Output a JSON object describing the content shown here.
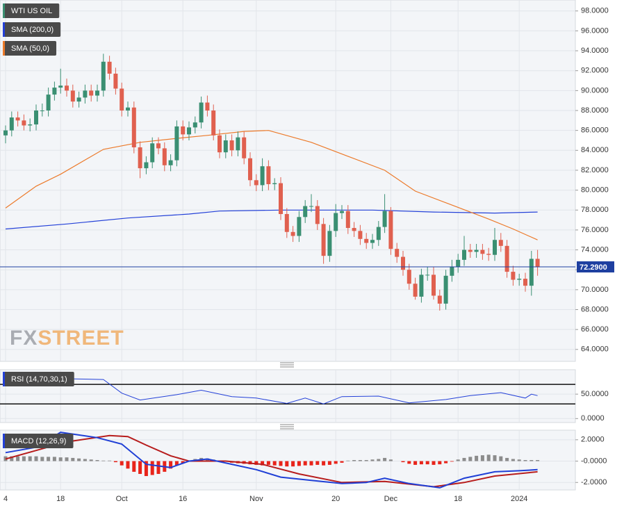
{
  "chart_data": [
    {
      "type": "candlestick",
      "title": "WTI US OIL",
      "watermark": [
        "FX",
        "STREET"
      ],
      "categories": [
        "4",
        null,
        null,
        null,
        null,
        null,
        null,
        null,
        null,
        "18",
        null,
        null,
        null,
        null,
        null,
        null,
        null,
        null,
        null,
        "Oct",
        null,
        null,
        null,
        null,
        null,
        null,
        null,
        null,
        null,
        "16",
        null,
        null,
        null,
        null,
        null,
        null,
        null,
        null,
        null,
        null,
        null,
        "Nov",
        null,
        null,
        null,
        null,
        null,
        null,
        null,
        null,
        null,
        null,
        null,
        null,
        "20",
        null,
        null,
        null,
        null,
        null,
        null,
        null,
        null,
        "Dec",
        null,
        null,
        null,
        null,
        null,
        null,
        null,
        null,
        null,
        null,
        "18",
        null,
        null,
        null,
        null,
        null,
        null,
        null,
        null,
        null,
        "2024",
        null,
        null,
        null
      ],
      "open": [
        85.5,
        86.0,
        87.3,
        87.0,
        86.5,
        86.6,
        88.0,
        88.0,
        89.6,
        90.3,
        90.5,
        90.0,
        88.9,
        89.3,
        90.0,
        89.5,
        90.0,
        92.9,
        91.7,
        90.2,
        88.0,
        88.3,
        84.3,
        82.2,
        82.8,
        84.7,
        84.2,
        82.5,
        83.0,
        86.4,
        85.6,
        86.3,
        86.8,
        88.8,
        88.0,
        85.5,
        83.8,
        85.0,
        84.0,
        85.3,
        83.2,
        81.0,
        80.5,
        82.4,
        80.6,
        80.7,
        77.6,
        75.8,
        75.4,
        77.3,
        78.4,
        78.4,
        76.6,
        73.4,
        75.9,
        77.7,
        77.9,
        76.2,
        75.9,
        75.1,
        74.7,
        75.0,
        76.3,
        77.9,
        74.1,
        73.3,
        72.0,
        70.6,
        69.3,
        71.5,
        71.5,
        69.4,
        68.6,
        71.4,
        72.3,
        73.0,
        74.0,
        73.8,
        74.0,
        73.6,
        73.5,
        75.0,
        74.4,
        71.8,
        71.0,
        71.1,
        70.4,
        73.1
      ],
      "high": [
        86.5,
        87.9,
        87.9,
        87.6,
        87.2,
        88.6,
        88.7,
        90.3,
        90.9,
        92.2,
        91.2,
        90.6,
        89.9,
        90.6,
        90.6,
        90.6,
        93.7,
        93.5,
        92.3,
        90.8,
        88.9,
        88.9,
        84.9,
        83.4,
        85.3,
        85.3,
        84.8,
        83.6,
        87.0,
        87.0,
        86.9,
        87.4,
        89.4,
        89.5,
        88.6,
        86.1,
        85.6,
        85.6,
        85.9,
        85.9,
        83.8,
        81.6,
        83.2,
        83.0,
        81.2,
        81.3,
        78.2,
        76.4,
        77.9,
        79.0,
        79.6,
        79.0,
        77.2,
        76.5,
        78.6,
        78.5,
        78.5,
        76.8,
        76.5,
        75.7,
        75.6,
        76.9,
        79.6,
        78.3,
        74.7,
        73.9,
        72.6,
        71.2,
        72.1,
        72.3,
        72.3,
        70.0,
        72.0,
        73.0,
        73.6,
        75.4,
        74.6,
        74.6,
        74.6,
        74.2,
        76.2,
        75.7,
        75.0,
        72.4,
        71.6,
        71.7,
        73.9,
        74.0
      ],
      "low": [
        84.7,
        85.4,
        86.4,
        86.0,
        85.9,
        86.0,
        87.4,
        87.4,
        89.0,
        89.7,
        89.4,
        88.3,
        88.3,
        88.7,
        88.9,
        88.9,
        89.4,
        91.1,
        89.6,
        87.4,
        87.4,
        83.7,
        81.2,
        81.6,
        82.2,
        83.6,
        81.9,
        81.9,
        82.4,
        85.0,
        85.0,
        85.7,
        86.2,
        87.4,
        85.0,
        83.2,
        83.2,
        83.4,
        83.4,
        82.6,
        80.4,
        79.9,
        79.9,
        80.0,
        80.0,
        77.0,
        75.2,
        74.8,
        74.8,
        76.7,
        77.8,
        76.0,
        72.6,
        72.8,
        75.3,
        77.1,
        75.6,
        75.3,
        74.5,
        74.1,
        74.1,
        74.4,
        75.7,
        73.5,
        72.7,
        71.4,
        70.0,
        69.0,
        68.7,
        70.9,
        69.0,
        67.9,
        68.0,
        70.8,
        71.7,
        72.4,
        73.2,
        73.2,
        73.0,
        72.9,
        72.9,
        73.8,
        71.2,
        70.4,
        70.4,
        69.8,
        69.4,
        71.4
      ],
      "close": [
        86.0,
        87.3,
        87.0,
        86.5,
        86.6,
        88.0,
        88.0,
        89.6,
        90.3,
        90.5,
        90.0,
        88.9,
        89.3,
        90.0,
        89.5,
        90.0,
        92.9,
        91.7,
        90.2,
        88.0,
        88.3,
        84.3,
        82.2,
        82.8,
        84.7,
        84.2,
        82.5,
        83.0,
        86.4,
        85.6,
        86.3,
        86.8,
        88.8,
        88.0,
        85.5,
        83.8,
        85.0,
        84.0,
        85.3,
        83.2,
        81.0,
        80.5,
        82.4,
        80.6,
        80.7,
        77.6,
        75.8,
        75.4,
        77.3,
        78.4,
        78.4,
        76.6,
        73.4,
        75.9,
        77.7,
        77.9,
        76.2,
        75.9,
        75.1,
        74.7,
        75.0,
        76.3,
        77.9,
        74.1,
        73.3,
        72.0,
        70.6,
        69.3,
        71.5,
        71.5,
        69.4,
        68.6,
        71.4,
        72.3,
        73.0,
        74.0,
        73.8,
        74.0,
        73.6,
        73.5,
        75.0,
        74.4,
        71.8,
        71.0,
        71.1,
        70.4,
        73.1,
        72.3
      ],
      "up_color": "#3a8f72",
      "down_color": "#e0604f",
      "legend_color": "#3a8f72",
      "series": [
        {
          "name": "SMA (200,0)",
          "color": "#2340d8",
          "x": [
            0,
            10,
            20,
            30,
            35,
            45,
            60,
            70,
            80,
            87
          ],
          "values": [
            76.1,
            76.6,
            77.2,
            77.6,
            77.9,
            78.0,
            78.0,
            77.8,
            77.7,
            77.8
          ]
        },
        {
          "name": "SMA (50,0)",
          "color": "#ec7a2a",
          "x": [
            0,
            5,
            9,
            16,
            22,
            28,
            33,
            39,
            43,
            50,
            56,
            62,
            67,
            73,
            79,
            83,
            87
          ],
          "values": [
            78.2,
            80.4,
            81.6,
            84.1,
            84.8,
            85.2,
            85.5,
            85.9,
            86.0,
            84.8,
            83.4,
            82.0,
            79.9,
            78.5,
            77.1,
            76.1,
            75.0
          ]
        }
      ],
      "last": {
        "value": 72.29,
        "label": "72.2900",
        "color": "#1e3fa0"
      },
      "ylim": [
        62.8,
        99.1
      ],
      "yticks": [
        {
          "value": 98,
          "label": "98.0000"
        },
        {
          "value": 96,
          "label": "96.0000"
        },
        {
          "value": 94,
          "label": "94.0000"
        },
        {
          "value": 92,
          "label": "92.0000"
        },
        {
          "value": 90,
          "label": "90.0000"
        },
        {
          "value": 88,
          "label": "88.0000"
        },
        {
          "value": 86,
          "label": "86.0000"
        },
        {
          "value": 84,
          "label": "84.0000"
        },
        {
          "value": 82,
          "label": "82.0000"
        },
        {
          "value": 80,
          "label": "80.0000"
        },
        {
          "value": 78,
          "label": "78.0000"
        },
        {
          "value": 76,
          "label": "76.0000"
        },
        {
          "value": 74,
          "label": "74.0000"
        },
        {
          "value": 72,
          "label": "72.0000"
        },
        {
          "value": 70,
          "label": "70.0000"
        },
        {
          "value": 68,
          "label": "68.0000"
        },
        {
          "value": 66,
          "label": "66.0000"
        },
        {
          "value": 64,
          "label": "64.0000"
        }
      ],
      "grid": true
    },
    {
      "type": "line",
      "series": [
        {
          "name": "RSI (14,70,30,1)",
          "color": "#2340d8",
          "x": [
            0,
            8,
            16,
            19,
            22,
            28,
            32,
            37,
            41,
            46,
            49,
            52,
            55,
            61,
            66,
            72,
            76,
            81,
            85,
            86,
            87
          ],
          "values": [
            80,
            82,
            80,
            52,
            38,
            49,
            58,
            45,
            42,
            31,
            42,
            30,
            45,
            46,
            32,
            39,
            47,
            53,
            42,
            50,
            47
          ]
        }
      ],
      "levels": [
        70,
        30
      ],
      "ylim": [
        -8.1,
        100
      ],
      "yticks": [
        {
          "value": 50,
          "label": "50.0000"
        },
        {
          "value": 0,
          "label": "0.0000"
        }
      ],
      "grid": true
    },
    {
      "type": "macd",
      "title": "MACD (12,26,9)",
      "legend_color": "#2340d8",
      "macd": {
        "color": "#1f3fd6",
        "x": [
          0,
          5,
          9,
          15,
          19,
          23,
          27,
          30,
          33,
          37,
          41,
          45,
          50,
          55,
          59,
          62,
          66,
          71,
          75,
          80,
          84,
          87
        ],
        "values": [
          0.8,
          1.3,
          2.7,
          2.2,
          1.6,
          -0.3,
          -0.6,
          0.0,
          0.2,
          -0.3,
          -0.8,
          -1.5,
          -1.8,
          -2.1,
          -2.0,
          -1.6,
          -2.1,
          -2.5,
          -1.6,
          -1.0,
          -0.9,
          -0.8
        ]
      },
      "signal": {
        "color": "#b71c1c",
        "x": [
          0,
          5,
          10,
          17,
          20,
          23,
          27,
          30,
          36,
          42,
          48,
          55,
          62,
          70,
          75,
          80,
          87
        ],
        "values": [
          0.2,
          1.0,
          1.8,
          2.4,
          2.3,
          1.5,
          0.5,
          0.0,
          0.0,
          -0.3,
          -1.2,
          -2.0,
          -1.9,
          -2.4,
          -2.0,
          -1.4,
          -1.0
        ]
      },
      "histogram": {
        "up_color": "#8c8c8c",
        "down_color": "#e8241a",
        "values": [
          0.45,
          0.45,
          0.45,
          0.45,
          0.45,
          0.45,
          0.4,
          0.4,
          0.4,
          0.35,
          0.35,
          0.3,
          0.25,
          0.2,
          0.15,
          0.1,
          0.05,
          0.05,
          -0.1,
          -0.4,
          -0.7,
          -1.0,
          -1.2,
          -1.4,
          -1.3,
          -1.2,
          -1.0,
          -0.7,
          -0.4,
          -0.2,
          0.05,
          0.2,
          0.3,
          0.25,
          0.15,
          0.05,
          -0.05,
          -0.15,
          -0.2,
          -0.25,
          -0.3,
          -0.35,
          -0.4,
          -0.35,
          -0.4,
          -0.45,
          -0.5,
          -0.5,
          -0.45,
          -0.4,
          -0.4,
          -0.35,
          -0.4,
          -0.35,
          -0.25,
          -0.15,
          0.05,
          0.1,
          0.1,
          0.1,
          0.15,
          0.2,
          0.3,
          0.15,
          0.0,
          -0.1,
          -0.25,
          -0.35,
          -0.3,
          -0.3,
          -0.35,
          -0.3,
          -0.2,
          -0.05,
          0.15,
          0.3,
          0.4,
          0.5,
          0.55,
          0.6,
          0.55,
          0.45,
          0.3,
          0.2,
          0.15,
          0.1,
          0.1,
          0.1
        ]
      },
      "ylim": [
        -2.7,
        2.9
      ],
      "yticks": [
        {
          "value": 2,
          "label": "2.0000"
        },
        {
          "value": 0,
          "label": "-0.0000"
        },
        {
          "value": -2,
          "label": "-2.0000"
        }
      ],
      "grid": true
    }
  ]
}
